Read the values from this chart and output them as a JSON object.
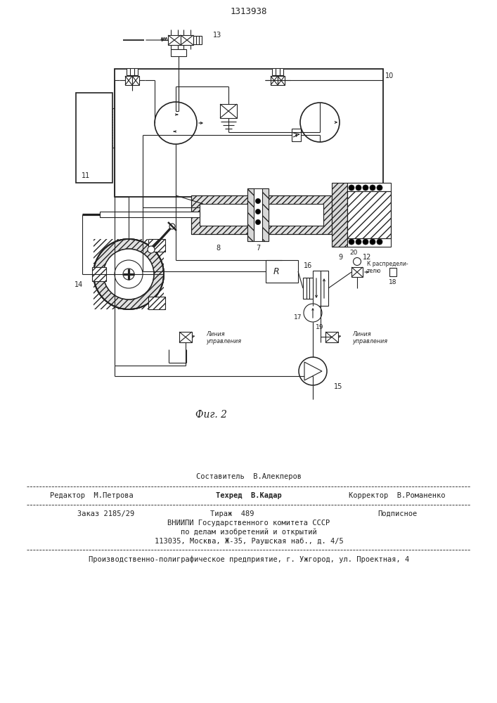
{
  "patent_number": "1313938",
  "fig_caption": "Фиг. 2",
  "bg": "#ffffff",
  "lc": "#222222",
  "footer": {
    "sestavitel": "Составитель  В.Алекперов",
    "redaktor": "Редактор  М.Петрова",
    "tekhred": "Техред  В.Кадар",
    "korrektor": "Корректор  В.Романенко",
    "zakaz": "Заказ 2185/29",
    "tirazh": "Тираж  489",
    "podpisnoe": "Подписное",
    "vniiki1": "ВНИИПИ Государственного комитета СССР",
    "vniiki2": "по делам изобретений и открытий",
    "vniiki3": "113035, Москва, Ж-35, Раушская наб., д. 4/5",
    "proizv": "Производственно-полиграфическое предприятие, г. Ужгород, ул. Проектная, 4"
  }
}
